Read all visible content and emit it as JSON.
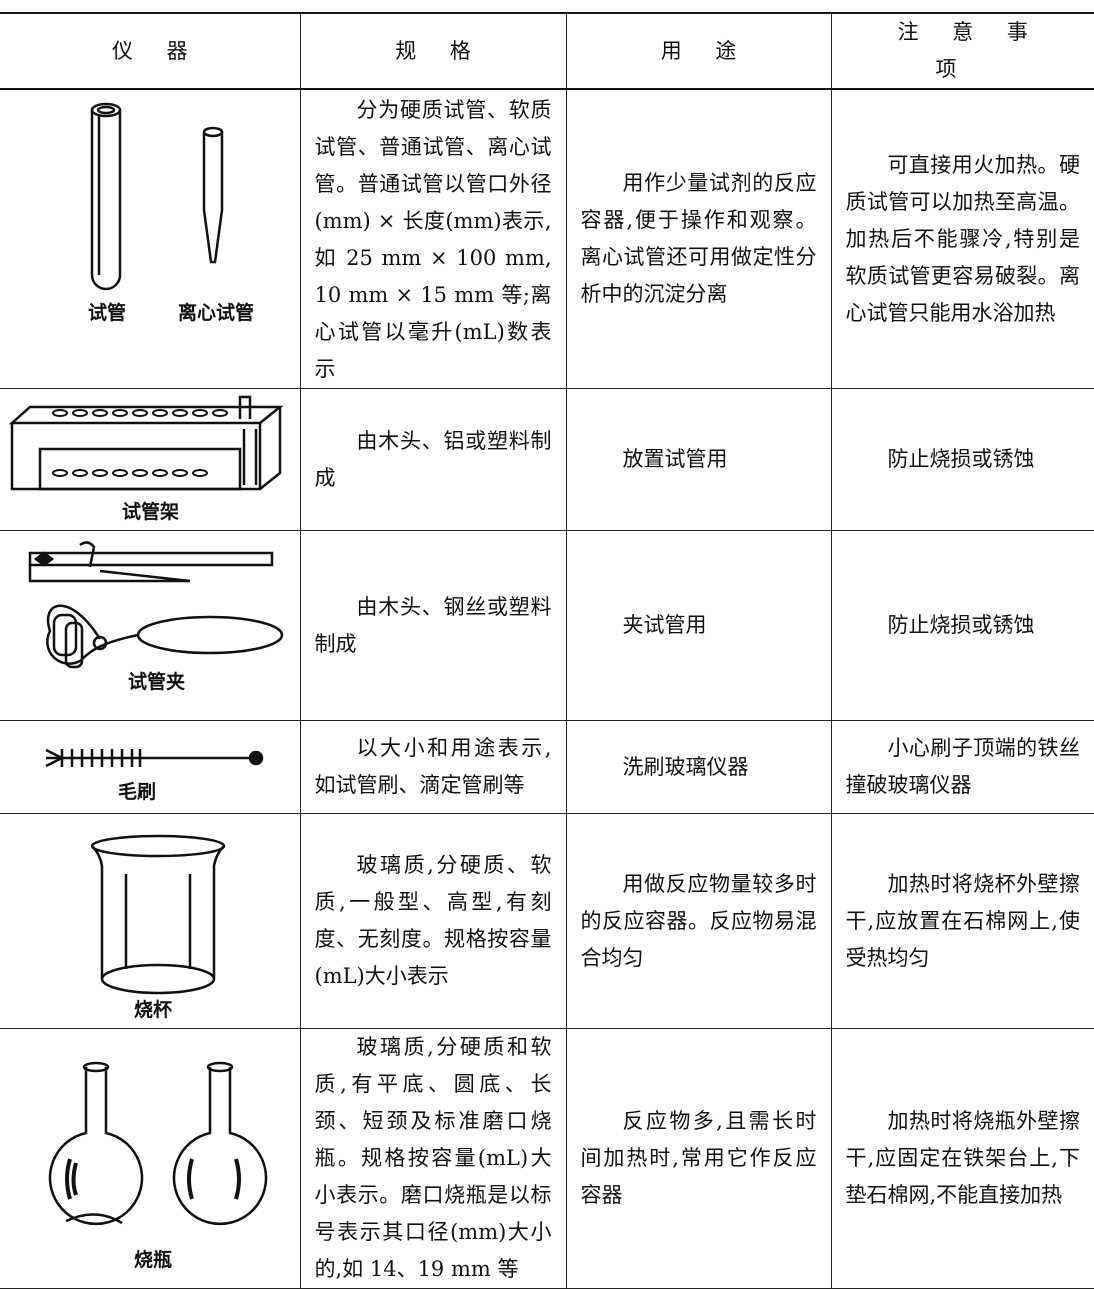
{
  "header": [
    "仪器",
    "规格",
    "用途",
    "注意事项"
  ],
  "rows": [
    {
      "labels": [
        "试管",
        "离心试管"
      ],
      "spec": "分为硬质试管、软质试管、普通试管、离心试管。普通试管以管口外径(mm) × 长度(mm)表示,如 25 mm × 100 mm, 10 mm × 15 mm 等;离心试管以毫升(mL)数表示",
      "use": "用作少量试剂的反应容器,便于操作和观察。离心试管还可用做定性分析中的沉淀分离",
      "note": "可直接用火加热。硬质试管可以加热至高温。加热后不能骤冷,特别是软质试管更容易破裂。离心试管只能用水浴加热"
    },
    {
      "labels": [
        "试管架"
      ],
      "spec": "由木头、铝或塑料制成",
      "use": "放置试管用",
      "note": "防止烧损或锈蚀"
    },
    {
      "labels": [
        "试管夹"
      ],
      "spec": "由木头、钢丝或塑料制成",
      "use": "夹试管用",
      "note": "防止烧损或锈蚀"
    },
    {
      "labels": [
        "毛刷"
      ],
      "spec": "以大小和用途表示,如试管刷、滴定管刷等",
      "use": "洗刷玻璃仪器",
      "note": "小心刷子顶端的铁丝撞破玻璃仪器"
    },
    {
      "labels": [
        "烧杯"
      ],
      "spec": "玻璃质,分硬质、软质,一般型、高型,有刻度、无刻度。规格按容量(mL)大小表示",
      "use": "用做反应物量较多时的反应容器。反应物易混合均匀",
      "note": "加热时将烧杯外壁擦干,应放置在石棉网上,使受热均匀"
    },
    {
      "labels": [
        "烧瓶"
      ],
      "spec": "玻璃质,分硬质和软质,有平底、圆底、长颈、短颈及标准磨口烧瓶。规格按容量(mL)大小表示。磨口烧瓶是以标号表示其口径(mm)大小的,如 14、19 mm 等",
      "use": "反应物多,且需长时间加热时,常用它作反应容器",
      "note": "加热时将烧瓶外壁擦干,应固定在铁架台上,下垫石棉网,不能直接加热"
    }
  ]
}
